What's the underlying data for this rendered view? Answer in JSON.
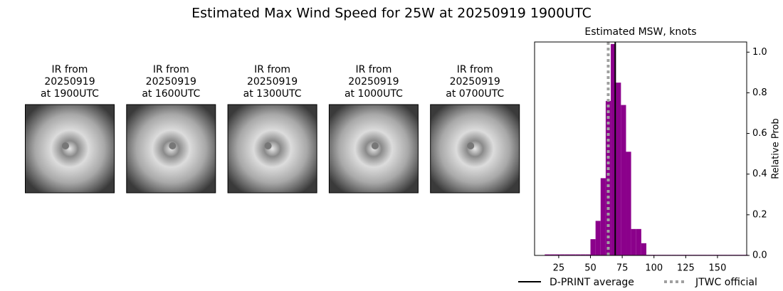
{
  "title": "Estimated Max Wind Speed for 25W at 20250919 1900UTC",
  "images": [
    {
      "lines": [
        "IR from",
        "20250919",
        "at 1900UTC"
      ]
    },
    {
      "lines": [
        "IR from",
        "20250919",
        "at 1600UTC"
      ]
    },
    {
      "lines": [
        "IR from",
        "20250919",
        "at 1300UTC"
      ]
    },
    {
      "lines": [
        "IR from",
        "20250919",
        "at 1000UTC"
      ]
    },
    {
      "lines": [
        "IR from",
        "20250919",
        "at 0700UTC"
      ]
    }
  ],
  "chart_data": {
    "type": "histogram",
    "title": "Estimated MSW, knots",
    "ylabel": "Relative Prob",
    "color": "#8b008b",
    "bins": [
      14,
      18,
      22,
      26,
      30,
      34,
      38,
      42,
      46,
      50,
      54,
      58,
      62,
      66,
      70,
      74,
      78,
      82,
      86,
      90,
      94,
      98,
      102,
      106,
      110,
      114,
      118,
      122,
      126,
      130,
      134,
      138,
      142,
      146,
      150,
      154,
      158,
      162,
      166,
      170,
      174
    ],
    "values": [
      0.005,
      0.005,
      0.005,
      0.005,
      0.005,
      0.005,
      0.005,
      0.005,
      0.005,
      0.08,
      0.17,
      0.38,
      0.76,
      1.04,
      0.85,
      0.74,
      0.51,
      0.13,
      0.13,
      0.06,
      0.003,
      0.003,
      0.003,
      0.003,
      0.003,
      0.003,
      0.003,
      0.003,
      0.003,
      0.003,
      0.003,
      0.003,
      0.003,
      0.003,
      0.003,
      0.003,
      0.003,
      0.003,
      0.003,
      0.003
    ],
    "xlim": [
      6,
      173
    ],
    "ylim": [
      0,
      1.05
    ],
    "xticks": [
      25,
      50,
      75,
      100,
      125,
      150
    ],
    "yticks": [
      {
        "value": 0,
        "label": "0.0"
      },
      0.2,
      0.4,
      0.6,
      0.8,
      {
        "value": 1,
        "label": "1.0"
      }
    ],
    "reference_lines": [
      {
        "name": "D-PRINT average",
        "x": 69.5,
        "color": "#000000",
        "style": "solid"
      },
      {
        "name": "JTWC official",
        "x": 64,
        "color": "#a0a0a0",
        "style": "dotted"
      }
    ]
  }
}
